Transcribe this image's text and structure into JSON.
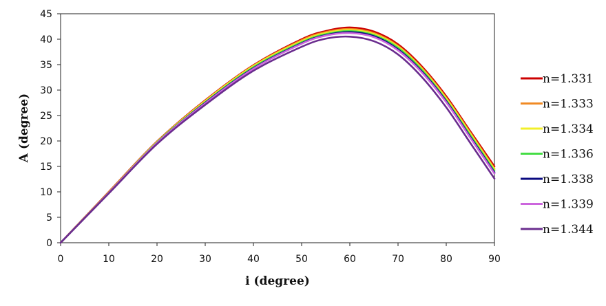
{
  "chart_data": {
    "type": "line",
    "title": "",
    "xlabel": "i (degree)",
    "ylabel": "A (degree)",
    "xlim": [
      0,
      90
    ],
    "ylim": [
      0,
      45
    ],
    "xticks": [
      0,
      10,
      20,
      30,
      40,
      50,
      60,
      70,
      80,
      90
    ],
    "yticks": [
      0,
      5,
      10,
      15,
      20,
      25,
      30,
      35,
      40,
      45
    ],
    "grid": false,
    "legend_position": "right",
    "x": [
      0,
      10,
      20,
      30,
      40,
      50,
      55,
      60,
      65,
      70,
      75,
      80,
      85,
      90
    ],
    "series": [
      {
        "name": "n=1.331",
        "color": "#cc0000",
        "values": [
          0,
          10.0,
          19.9,
          28.0,
          34.9,
          40.0,
          41.6,
          42.3,
          41.5,
          39.0,
          34.6,
          28.8,
          21.9,
          15.0
        ]
      },
      {
        "name": "n=1.333",
        "color": "#f08a24",
        "values": [
          0,
          9.9,
          19.8,
          27.9,
          34.8,
          39.8,
          41.4,
          42.0,
          41.2,
          38.7,
          34.3,
          28.5,
          21.6,
          14.6
        ]
      },
      {
        "name": "n=1.334",
        "color": "#f2ef2a",
        "values": [
          0,
          9.9,
          19.8,
          27.8,
          34.7,
          39.6,
          41.2,
          41.8,
          41.0,
          38.5,
          34.1,
          28.3,
          21.4,
          14.4
        ]
      },
      {
        "name": "n=1.336",
        "color": "#44dd44",
        "values": [
          0,
          9.8,
          19.7,
          27.6,
          34.5,
          39.4,
          41.0,
          41.6,
          40.8,
          38.3,
          33.9,
          28.0,
          21.1,
          14.1
        ]
      },
      {
        "name": "n=1.338",
        "color": "#0a0a80",
        "values": [
          0,
          9.8,
          19.6,
          27.5,
          34.3,
          39.2,
          40.8,
          41.4,
          40.6,
          38.0,
          33.6,
          27.8,
          20.8,
          13.8
        ]
      },
      {
        "name": "n=1.339",
        "color": "#cc66dd",
        "values": [
          0,
          9.8,
          19.6,
          27.4,
          34.2,
          39.1,
          40.7,
          41.2,
          40.4,
          37.8,
          33.4,
          27.6,
          20.6,
          13.6
        ]
      },
      {
        "name": "n=1.344",
        "color": "#6a2c8e",
        "values": [
          0,
          9.7,
          19.4,
          27.1,
          33.8,
          38.5,
          40.1,
          40.5,
          39.6,
          37.0,
          32.5,
          26.6,
          19.6,
          12.6
        ]
      }
    ]
  }
}
